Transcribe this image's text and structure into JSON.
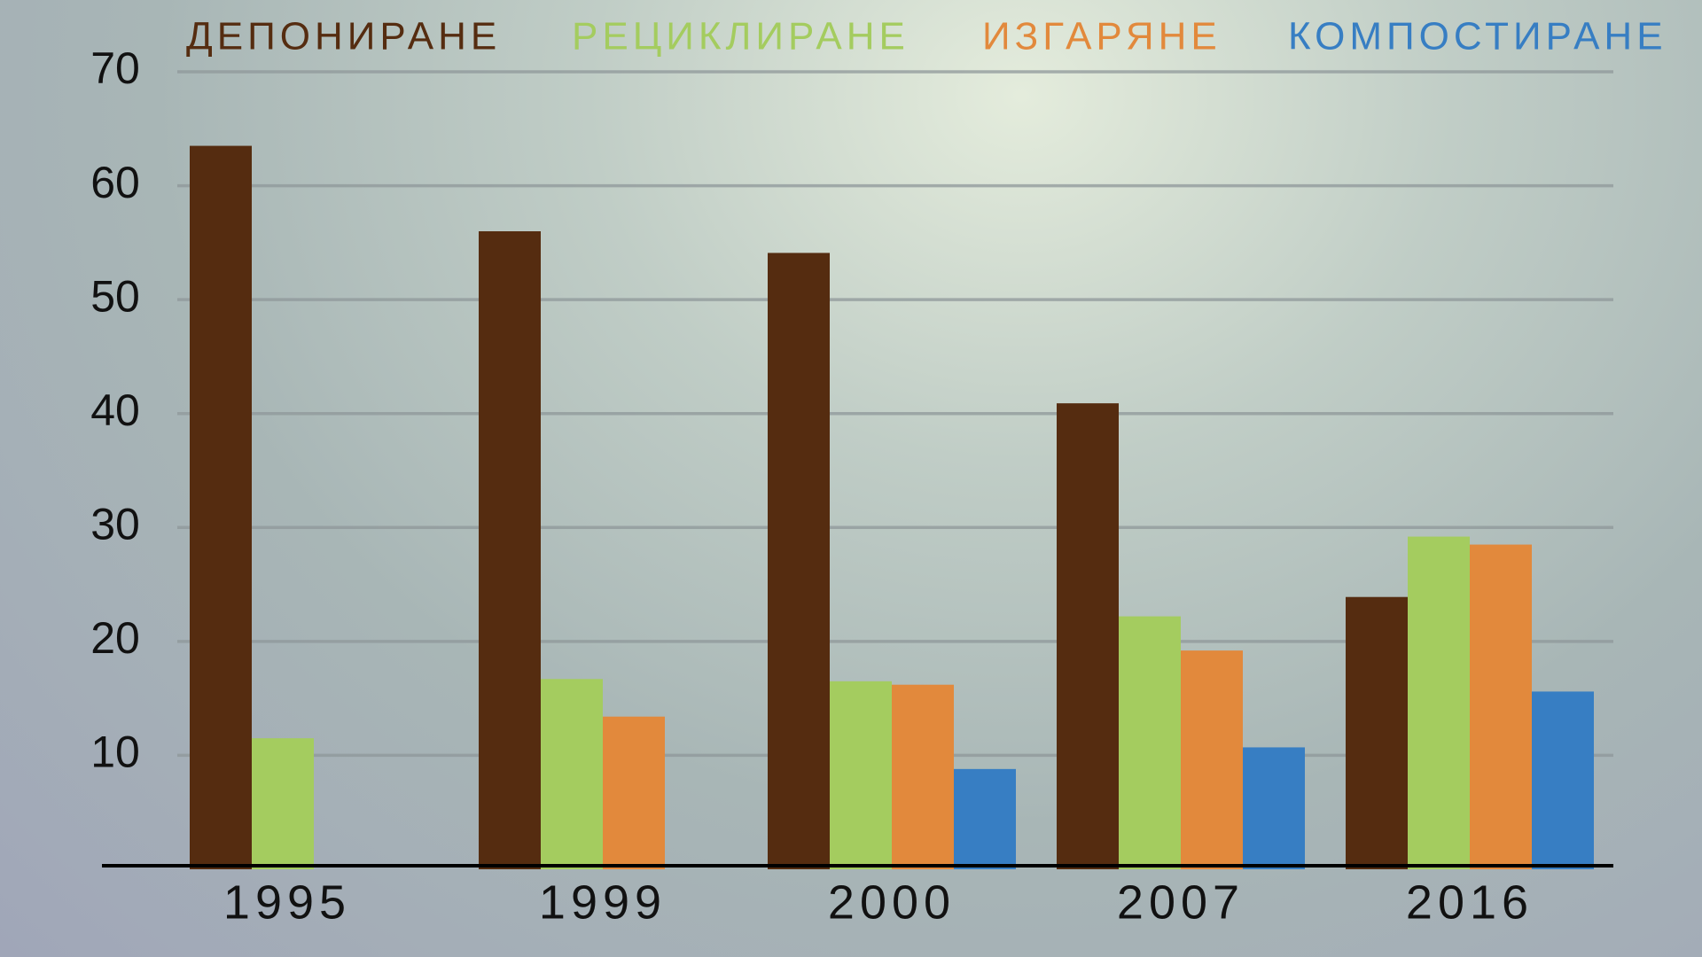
{
  "chart_data": {
    "type": "bar",
    "categories": [
      "1995",
      "1999",
      "2000",
      "2007",
      "2016"
    ],
    "series": [
      {
        "name": "ДЕПОНИРАНЕ",
        "color": "#552c10",
        "values": [
          63.5,
          56,
          54.1,
          40.9,
          23.9
        ]
      },
      {
        "name": "РЕЦИКЛИРАНЕ",
        "color": "#a4cc5f",
        "values": [
          11.5,
          16.7,
          16.5,
          22.2,
          29.2
        ]
      },
      {
        "name": "ИЗГАРЯНЕ",
        "color": "#e2893c",
        "values": [
          null,
          13.4,
          16.2,
          19.2,
          28.5
        ]
      },
      {
        "name": "КОМПОСТИРАНЕ",
        "color": "#377ec3",
        "values": [
          null,
          null,
          8.8,
          10.7,
          15.6
        ]
      }
    ],
    "ylim": [
      0,
      70
    ],
    "yticks": [
      10,
      20,
      30,
      40,
      50,
      60,
      70
    ],
    "grid": true,
    "legend": "top"
  }
}
